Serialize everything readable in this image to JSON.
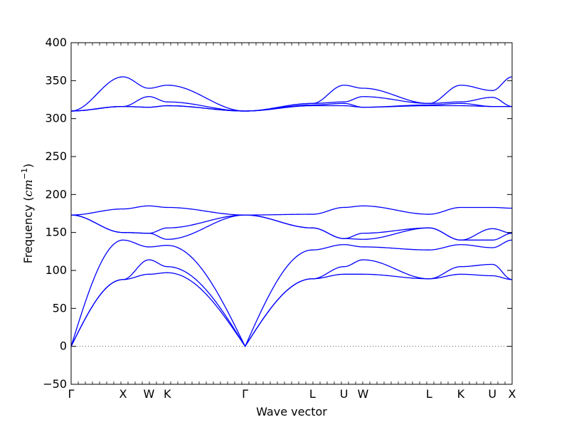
{
  "chart_data": {
    "type": "line",
    "title": "",
    "xlabel": "Wave vector",
    "ylabel": "Frequency",
    "ylabel_unit": "cm",
    "ylabel_exponent": "−1",
    "ylim": [
      -50,
      400
    ],
    "yticks": [
      -50,
      0,
      50,
      100,
      150,
      200,
      250,
      300,
      350,
      400
    ],
    "grid": false,
    "legend": "none",
    "line_color": "#0000ff",
    "zero_line_color": "#555555",
    "x": [
      0,
      1.0,
      1.5,
      1.854,
      3.354,
      4.653,
      5.26,
      5.627,
      6.9,
      7.512,
      8.12,
      8.5
    ],
    "xtick_labels": [
      "Γ",
      "X",
      "W",
      "K",
      "Γ",
      "L",
      "U",
      "W",
      "L",
      "K",
      "U",
      "X"
    ],
    "series": [
      {
        "values": [
          0,
          88,
          95,
          97,
          0,
          89,
          95,
          95,
          89,
          95,
          93,
          88
        ]
      },
      {
        "values": [
          0,
          88,
          114,
          105,
          0,
          89,
          105,
          114,
          89,
          105,
          108,
          88
        ]
      },
      {
        "values": [
          0,
          140,
          131,
          133,
          0,
          127,
          134,
          131,
          127,
          134,
          130,
          140
        ]
      },
      {
        "values": [
          173,
          150,
          149,
          156,
          173,
          156,
          142,
          149,
          156,
          140,
          155,
          149
        ]
      },
      {
        "values": [
          173,
          150,
          149,
          141,
          173,
          156,
          142,
          141,
          156,
          140,
          140,
          149
        ]
      },
      {
        "values": [
          173,
          181,
          185,
          183,
          173,
          174,
          183,
          185,
          174,
          183,
          183,
          182
        ]
      },
      {
        "values": [
          310,
          316,
          315,
          317,
          310,
          317,
          317,
          315,
          317,
          317,
          316,
          316
        ]
      },
      {
        "values": [
          310,
          316,
          315,
          317,
          310,
          318,
          320,
          315,
          318,
          320,
          316,
          316
        ]
      },
      {
        "values": [
          310,
          316,
          329,
          322,
          310,
          320,
          322,
          329,
          320,
          322,
          328,
          316
        ]
      },
      {
        "values": [
          310,
          355,
          340,
          344,
          310,
          320,
          344,
          340,
          320,
          344,
          337,
          355
        ]
      }
    ]
  }
}
